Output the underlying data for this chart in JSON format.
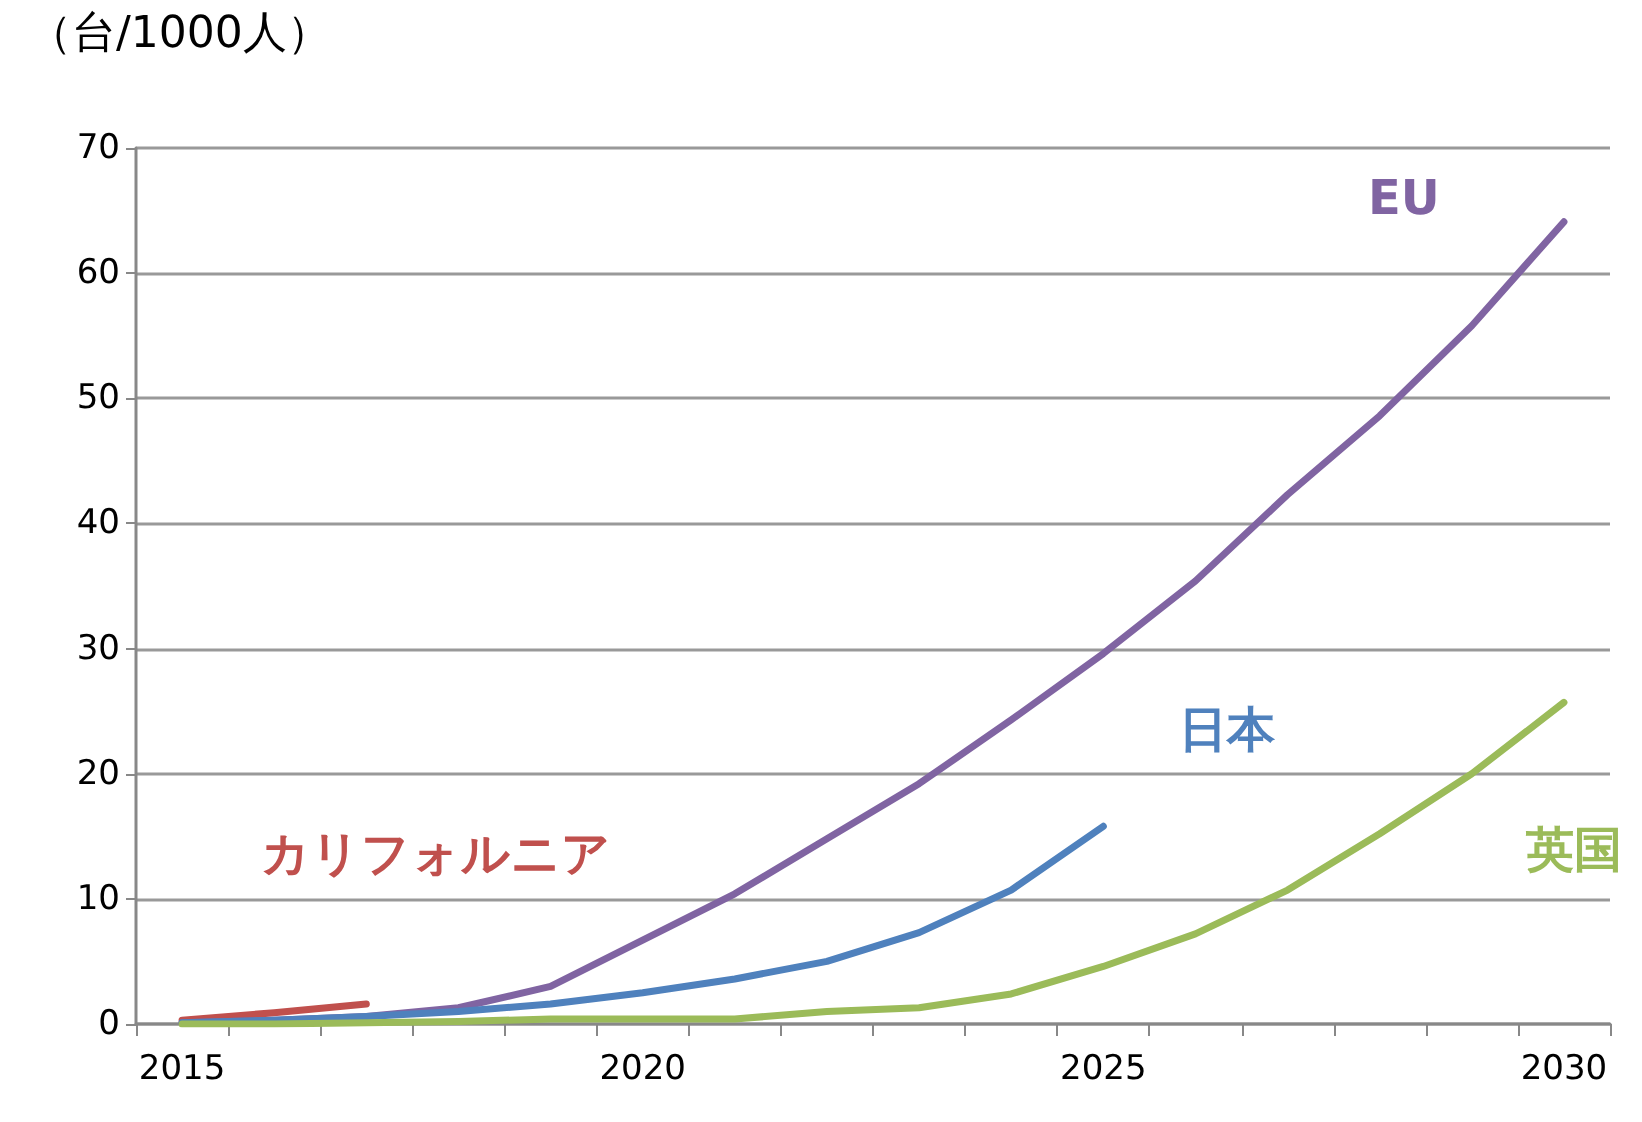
{
  "chart_data": {
    "type": "line",
    "ylabel": "（台/1000人）",
    "categories": [
      "2015",
      null,
      null,
      null,
      null,
      "2020",
      null,
      null,
      null,
      null,
      "2025",
      null,
      null,
      null,
      null,
      "2030"
    ],
    "series": [
      {
        "name": "カリフォルニア",
        "color": "#c0504d",
        "values": [
          0.3,
          0.9,
          1.6,
          null,
          null,
          null,
          null,
          null,
          null,
          null,
          null,
          null,
          null,
          null,
          null,
          null
        ]
      },
      {
        "name": "EU",
        "color": "#8064a2",
        "values": [
          0.1,
          0.3,
          0.6,
          1.3,
          3.0,
          6.7,
          10.4,
          14.8,
          19.2,
          24.3,
          29.6,
          35.4,
          42.3,
          48.6,
          55.8,
          64.1
        ]
      },
      {
        "name": "日本",
        "color": "#4f81bd",
        "values": [
          0.1,
          0.3,
          0.6,
          1.0,
          1.6,
          2.5,
          3.6,
          5.0,
          7.3,
          10.7,
          15.8,
          null,
          null,
          null,
          null,
          null
        ]
      },
      {
        "name": "英国",
        "color": "#9bbb59",
        "values": [
          0,
          0,
          0.1,
          0.2,
          0.4,
          0.4,
          0.4,
          1.0,
          1.3,
          2.4,
          4.6,
          7.2,
          10.7,
          15.2,
          20.0,
          25.7
        ]
      }
    ],
    "ylim": [
      0,
      70
    ],
    "yticks": [
      0,
      10,
      20,
      30,
      40,
      50,
      60,
      70
    ],
    "grid": "y",
    "marker": "none",
    "line_style": "solid"
  }
}
